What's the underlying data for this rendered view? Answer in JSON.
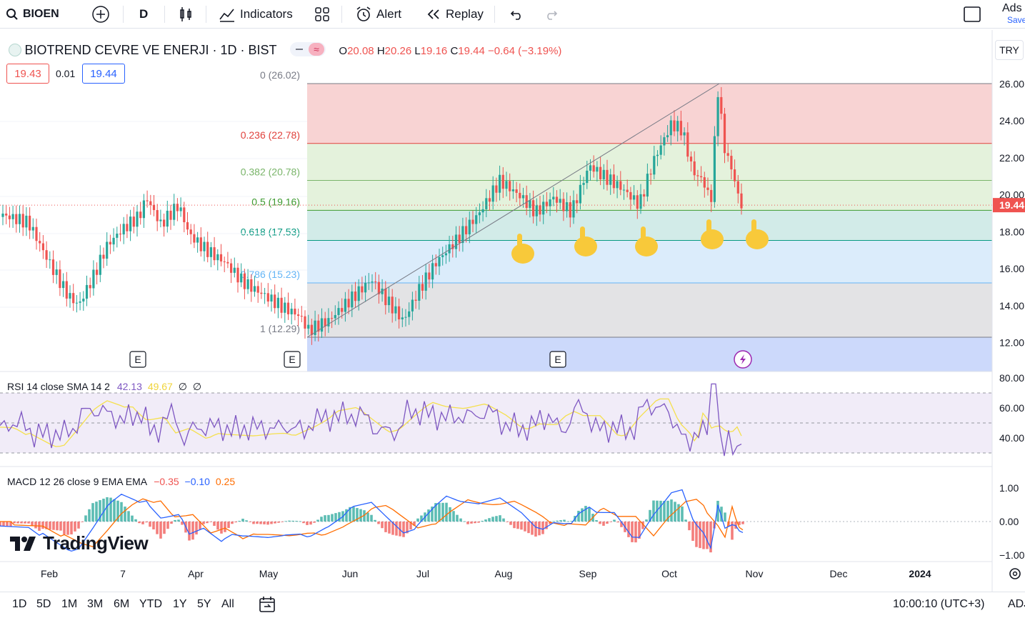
{
  "toolbar": {
    "symbol": "BIOEN",
    "interval": "D",
    "indicators_label": "Indicators",
    "alert_label": "Alert",
    "replay_label": "Replay",
    "right_label": "Ads",
    "right_sub": "Save"
  },
  "legend": {
    "name": "BIOTREND CEVRE VE ENERJI · 1D · BIST",
    "o_label": "O",
    "o": "20.08",
    "h_label": "H",
    "h": "20.26",
    "l_label": "L",
    "l": "19.16",
    "c_label": "C",
    "c": "19.44",
    "change": "−0.64 (−3.19%)",
    "sell": "19.43",
    "spread": "0.01",
    "buy": "19.44"
  },
  "currency": "TRY",
  "price_tag": "19.44",
  "fib_levels": [
    {
      "label": "0 (26.02)",
      "price": 26.02,
      "color": "#787b86",
      "fill": "#f8d3d3"
    },
    {
      "label": "0.236 (22.78)",
      "price": 22.78,
      "color": "#e0413c",
      "fill": "#e4f2dc"
    },
    {
      "label": "0.382 (20.78)",
      "price": 20.78,
      "color": "#7ab56a",
      "fill": "#e4f2dc"
    },
    {
      "label": "0.5 (19.16)",
      "price": 19.16,
      "color": "#3d9a30",
      "fill": "#d2ebe8"
    },
    {
      "label": "0.618 (17.53)",
      "price": 17.53,
      "color": "#089981",
      "fill": "#dbecfb"
    },
    {
      "label": "0.786 (15.23)",
      "price": 15.23,
      "color": "#64b5f6",
      "fill": "#e3e3e5"
    },
    {
      "label": "1 (12.29)",
      "price": 12.29,
      "color": "#787b86",
      "fill": "#ccd9fb"
    }
  ],
  "price_axis": [
    "26.00",
    "24.00",
    "22.00",
    "20.00",
    "18.00",
    "16.00",
    "14.00",
    "12.00"
  ],
  "time_axis": [
    "Feb",
    "7",
    "Apr",
    "May",
    "Jun",
    "Jul",
    "Aug",
    "Sep",
    "Oct",
    "Nov",
    "Dec",
    "2024"
  ],
  "rsi": {
    "title": "RSI",
    "params": "14 close SMA 14 2",
    "value": "42.13",
    "sma": "49.67",
    "extra1": "∅",
    "extra2": "∅",
    "axis": [
      "80.00",
      "60.00",
      "40.00"
    ]
  },
  "macd": {
    "title": "MACD",
    "params": "12 26 close 9 EMA EMA",
    "hist": "−0.35",
    "macd": "−0.10",
    "signal": "0.25",
    "axis": [
      "1.00",
      "0.00",
      "−1.00"
    ]
  },
  "earnings_marker": "E",
  "brand": "TradingView",
  "bottom": {
    "ranges": [
      "1D",
      "5D",
      "1M",
      "3M",
      "6M",
      "YTD",
      "1Y",
      "5Y",
      "All"
    ],
    "clock": "10:00:10 (UTC+3)",
    "adj": "ADJ"
  },
  "colors": {
    "up": "#26a69a",
    "down": "#ef5350",
    "rsi": "#7e57c2",
    "rsi_sma": "#f5e04d",
    "macd": "#2962ff",
    "signal": "#ff6d00"
  }
}
